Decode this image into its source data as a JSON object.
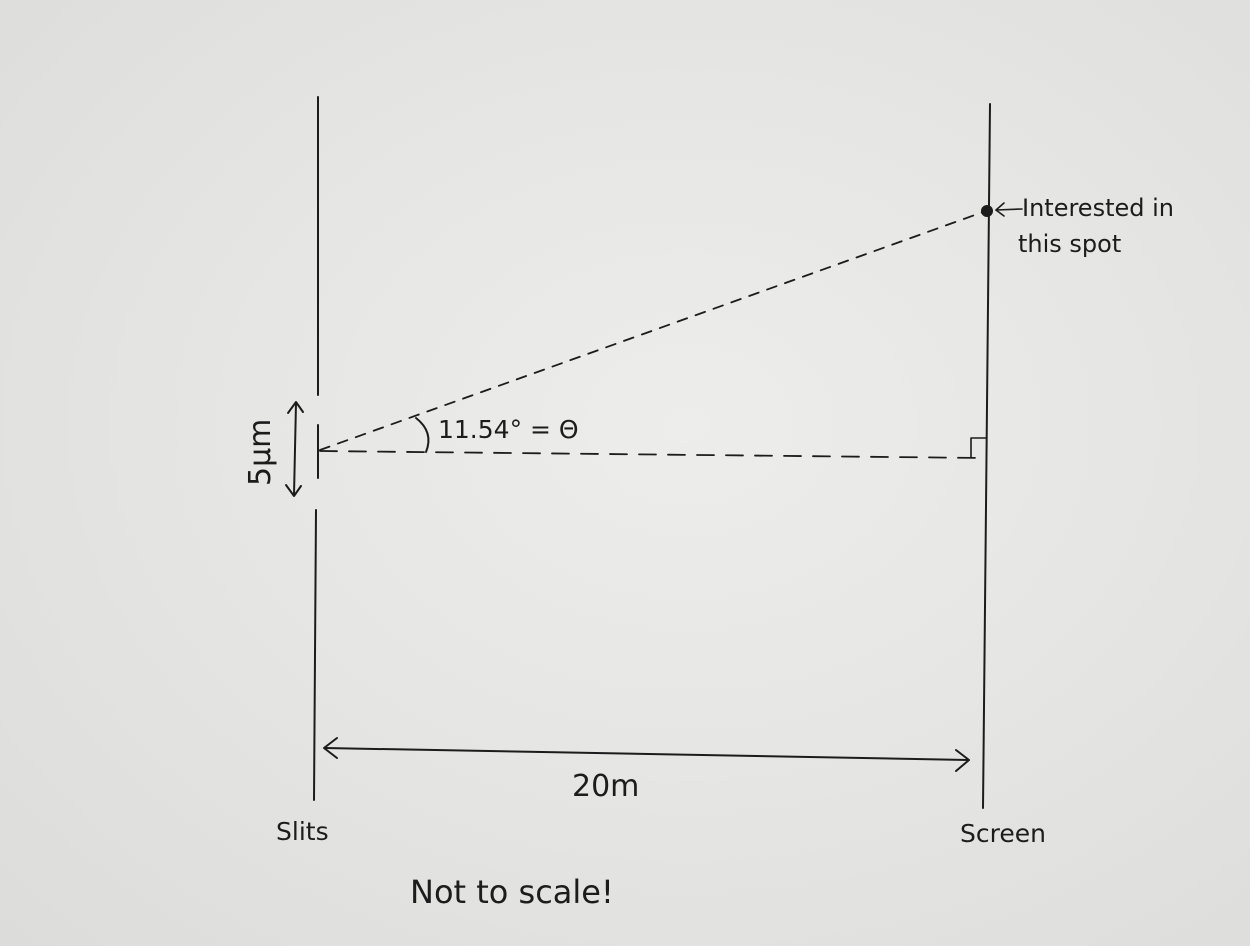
{
  "diagram": {
    "slit_separation_label": "5μm",
    "angle_label": "11.54° = Θ",
    "distance_label": "20m",
    "slits_label": "Slits",
    "screen_label": "Screen",
    "spot_label_line1": "Interested in",
    "spot_label_line2": "this spot",
    "scale_note": "Not to scale!"
  },
  "colors": {
    "paper": "#e6e6e4",
    "ink": "#1c1c1c"
  }
}
